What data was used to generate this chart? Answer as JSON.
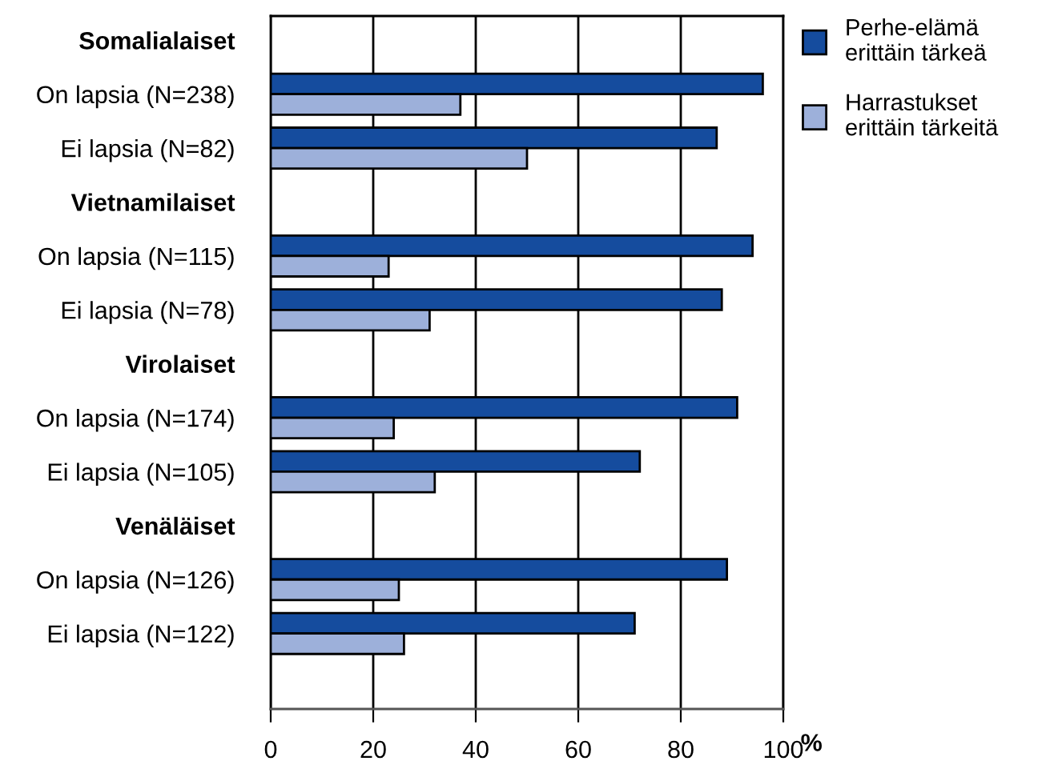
{
  "chart_data": {
    "type": "bar",
    "orientation": "horizontal",
    "categories": [
      "Somalialaiset",
      "On lapsia (N=238)",
      "Ei lapsia (N=82)",
      "Vietnamilaiset",
      "On lapsia (N=115)",
      "Ei lapsia (N=78)",
      "Virolaiset",
      "On lapsia (N=174)",
      "Ei lapsia (N=105)",
      "Venäläiset",
      "On lapsia (N=126)",
      "Ei lapsia (N=122)"
    ],
    "series": [
      {
        "name": "Perhe-elämä\nerittäin tärkeä",
        "color": "#154c9e",
        "values": [
          null,
          96,
          87,
          null,
          94,
          88,
          null,
          91,
          72,
          null,
          89,
          71
        ]
      },
      {
        "name": "Harrastukset\nerittäin tärkeitä",
        "color": "#9db0da",
        "values": [
          null,
          37,
          50,
          null,
          23,
          31,
          null,
          24,
          32,
          null,
          25,
          26
        ]
      }
    ],
    "xlim": [
      0,
      100
    ],
    "xticks": [
      0,
      20,
      40,
      60,
      80,
      100
    ],
    "xlabel": "%",
    "grid": "x",
    "legend": "top right"
  }
}
